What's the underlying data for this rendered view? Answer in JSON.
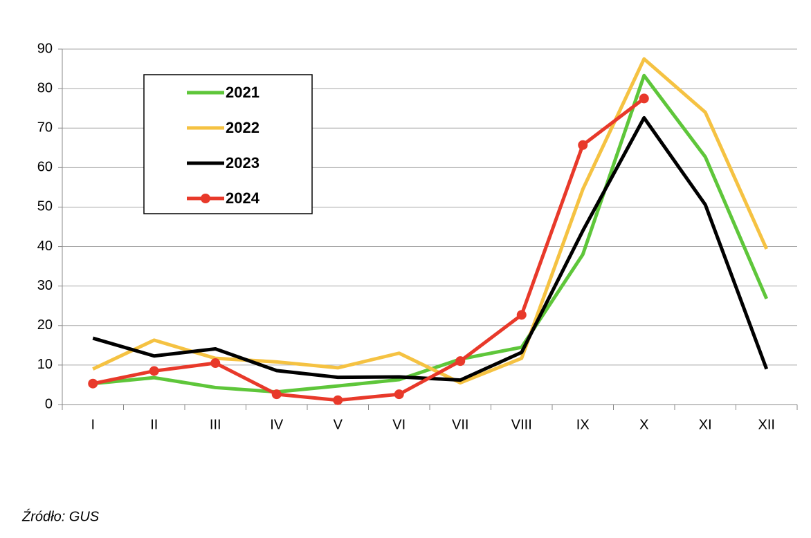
{
  "chart_data": {
    "type": "line",
    "categories": [
      "I",
      "II",
      "III",
      "IV",
      "V",
      "VI",
      "VII",
      "VIII",
      "IX",
      "X",
      "XI",
      "XII"
    ],
    "series": [
      {
        "name": "2021",
        "color": "#5ec63a",
        "values": [
          5.3,
          6.8,
          4.3,
          3.2,
          4.7,
          6.3,
          11.5,
          14.5,
          38,
          83.3,
          62.7,
          26.8
        ]
      },
      {
        "name": "2022",
        "color": "#f5c242",
        "values": [
          9,
          16.3,
          11.7,
          10.8,
          9.3,
          13,
          5.5,
          11.7,
          54.5,
          87.5,
          74,
          39.4
        ]
      },
      {
        "name": "2023",
        "color": "#000000",
        "values": [
          16.8,
          12.3,
          14.1,
          8.6,
          6.9,
          7,
          6.2,
          13.2,
          44,
          72.6,
          50.6,
          9
        ]
      },
      {
        "name": "2024",
        "color": "#e8392a",
        "markers": true,
        "values": [
          5.3,
          8.5,
          10.5,
          2.6,
          1.1,
          2.6,
          11,
          22.7,
          65.7,
          77.5,
          null,
          null
        ]
      }
    ],
    "ylim": [
      0,
      90
    ],
    "yticks": [
      0,
      10,
      20,
      30,
      40,
      50,
      60,
      70,
      80,
      90
    ],
    "grid": true,
    "legend": "upper left",
    "source": "Źródło: GUS"
  }
}
